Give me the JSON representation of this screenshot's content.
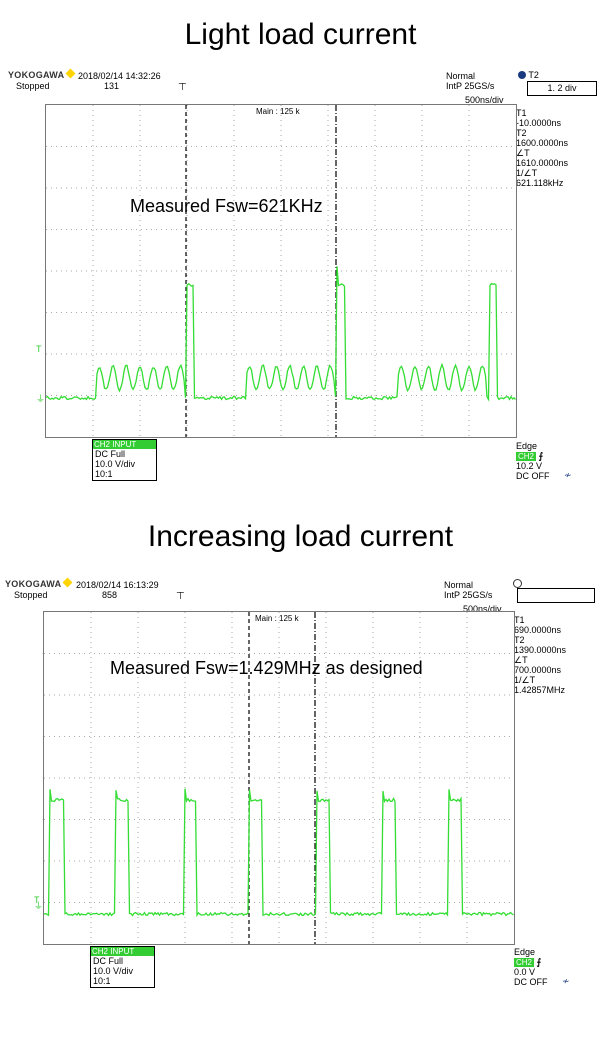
{
  "panels": [
    {
      "heading": "Light load current",
      "brand": "YOKOGAWA",
      "datetime": "2018/02/14 14:32:26",
      "run_state": "Stopped",
      "acq_count": "131",
      "trigger_mode": "Normal",
      "sample_rate": "IntP  25GS/s",
      "timebase": "500ns/div",
      "zoom_label": "Main : 125 k",
      "cursor_select": "T2",
      "cursor_value": "1.  2  div",
      "cursors": [
        {
          "label": "T1",
          "value": "-10.0000ns"
        },
        {
          "label": "T2",
          "value": "1600.0000ns"
        },
        {
          "label": "∠T",
          "value": "1610.0000ns"
        },
        {
          "label": "1/∠T",
          "value": "621.118kHz"
        }
      ],
      "annotation": "Measured Fsw=621KHz",
      "channel": {
        "tab": "CH2 INPUT",
        "coupling": "DC Full",
        "scale": "10.0 V/div",
        "probe": "10:1"
      },
      "trigger": {
        "type": "Edge",
        "source": "CH2",
        "level": "10.2 V",
        "filter": "DC OFF"
      },
      "trace_color": "#33dd33"
    },
    {
      "heading": "Increasing load current",
      "brand": "YOKOGAWA",
      "datetime": "2018/02/14 16:13:29",
      "run_state": "Stopped",
      "acq_count": "858",
      "trigger_mode": "Normal",
      "sample_rate": "IntP  25GS/s",
      "timebase": "500ns/div",
      "zoom_label": "Main : 125 k",
      "cursor_select": "",
      "cursor_value": "",
      "cursors": [
        {
          "label": "T1",
          "value": "690.0000ns"
        },
        {
          "label": "T2",
          "value": "1390.0000ns"
        },
        {
          "label": "∠T",
          "value": "700.0000ns"
        },
        {
          "label": "1/∠T",
          "value": "1.42857MHz"
        }
      ],
      "annotation": "Measured Fsw=1.429MHz as designed",
      "channel": {
        "tab": "CH2 INPUT",
        "coupling": "DC Full",
        "scale": "10.0 V/div",
        "probe": "10:1"
      },
      "trigger": {
        "type": "Edge",
        "source": "CH2",
        "level": "0.0 V",
        "filter": "DC OFF"
      },
      "trace_color": "#33dd33"
    }
  ]
}
